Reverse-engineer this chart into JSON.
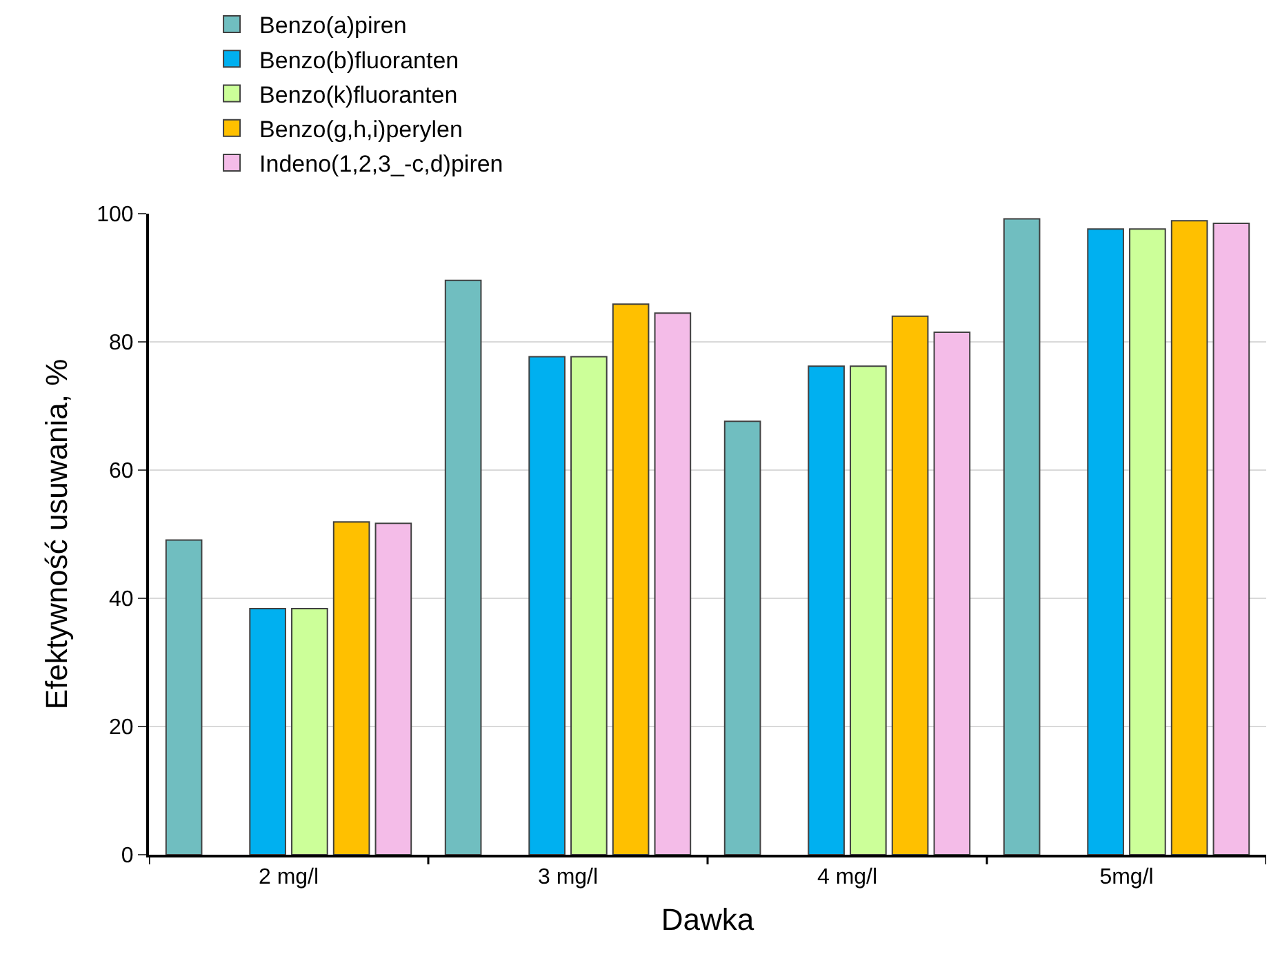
{
  "chart_data": {
    "type": "bar",
    "xlabel": "Dawka",
    "ylabel": "Efektywność usuwania, %",
    "categories": [
      "2 mg/l",
      "3 mg/l",
      "4 mg/l",
      "5mg/l"
    ],
    "series": [
      {
        "name": "Benzo(a)piren",
        "color": "#70bec0",
        "values": [
          49.1,
          89.6,
          67.6,
          99.2
        ]
      },
      {
        "values": [
          null,
          null,
          null,
          null
        ]
      },
      {
        "name": "Benzo(b)fluoranten",
        "color": "#00b0f0",
        "values": [
          38.4,
          77.7,
          76.2,
          97.6
        ]
      },
      {
        "name": "Benzo(k)fluoranten",
        "color": "#ccff99",
        "values": [
          38.4,
          77.7,
          76.2,
          97.6
        ]
      },
      {
        "name": "Benzo(g,h,i)perylen",
        "color": "#ffc000",
        "values": [
          51.9,
          85.9,
          84.0,
          98.9
        ]
      },
      {
        "name": "Indeno(1,2,3_-c,d)piren",
        "color": "#f4bce8",
        "values": [
          51.7,
          84.5,
          81.5,
          98.5
        ]
      }
    ],
    "ylim": [
      0,
      100
    ],
    "yticks": [
      0,
      20,
      40,
      60,
      80,
      100
    ],
    "grid": "y",
    "legend": "top"
  }
}
